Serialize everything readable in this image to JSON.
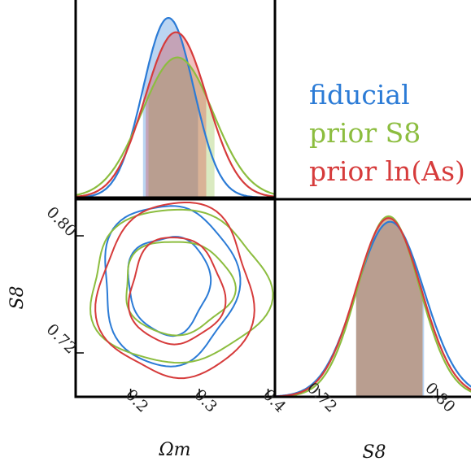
{
  "chart_data": [
    {
      "type": "area",
      "panel": "Omega_m marginal",
      "x_range": [
        0.12,
        0.41
      ],
      "normalized": true,
      "series": [
        {
          "name": "fiducial",
          "color": "#2b7bd6",
          "mean": 0.255,
          "sigma": 0.037,
          "peak": 1.0,
          "interval": [
            0.218,
            0.298
          ]
        },
        {
          "name": "prior S_8",
          "color": "#8cbd3f",
          "mean": 0.268,
          "sigma": 0.052,
          "peak": 0.78,
          "interval": [
            0.226,
            0.322
          ]
        },
        {
          "name": "prior ln(A_s)",
          "color": "#d63b3b",
          "mean": 0.266,
          "sigma": 0.045,
          "peak": 0.92,
          "interval": [
            0.222,
            0.31
          ]
        }
      ]
    },
    {
      "type": "contour",
      "panel": "Omega_m vs S_8",
      "x_range": [
        0.12,
        0.41
      ],
      "y_range": [
        0.69,
        0.825
      ],
      "xticks": [
        "0.2",
        "0.3",
        "0.4"
      ],
      "yticks": [
        "0.72",
        "0.80"
      ],
      "xlabel": "Ωm",
      "ylabel": "S8",
      "levels": [
        "68%",
        "95%"
      ],
      "series": [
        {
          "name": "fiducial",
          "color": "#2b7bd6",
          "center": [
            0.255,
            0.767
          ],
          "sd": [
            0.039,
            0.022
          ]
        },
        {
          "name": "prior S_8",
          "color": "#8cbd3f",
          "center": [
            0.268,
            0.765
          ],
          "sd": [
            0.052,
            0.021
          ]
        },
        {
          "name": "prior ln(A_s)",
          "color": "#d63b3b",
          "center": [
            0.266,
            0.762
          ],
          "sd": [
            0.045,
            0.024
          ]
        }
      ]
    },
    {
      "type": "area",
      "panel": "S_8 marginal",
      "x_range": [
        0.69,
        0.825
      ],
      "xticks": [
        "0.72",
        "0.80"
      ],
      "xlabel": "S8",
      "normalized": true,
      "series": [
        {
          "name": "fiducial",
          "color": "#2b7bd6",
          "mean": 0.768,
          "sigma": 0.023,
          "peak": 0.97,
          "interval": [
            0.745,
            0.791
          ]
        },
        {
          "name": "prior S_8",
          "color": "#8cbd3f",
          "mean": 0.767,
          "sigma": 0.021,
          "peak": 1.0,
          "interval": [
            0.745,
            0.79
          ]
        },
        {
          "name": "prior ln(A_s)",
          "color": "#d63b3b",
          "mean": 0.767,
          "sigma": 0.022,
          "peak": 0.99,
          "interval": [
            0.745,
            0.79
          ]
        }
      ]
    }
  ],
  "legend": {
    "items": [
      {
        "label": "fiducial",
        "color": "#2b7bd6"
      },
      {
        "label": "prior S8",
        "color": "#8cbd3f"
      },
      {
        "label": "prior ln(As)",
        "color": "#d63b3b"
      }
    ]
  },
  "axes": {
    "xlabel_omega": "Ωm",
    "ylabel_s8": "S8",
    "xlabel_s8": "S8"
  }
}
